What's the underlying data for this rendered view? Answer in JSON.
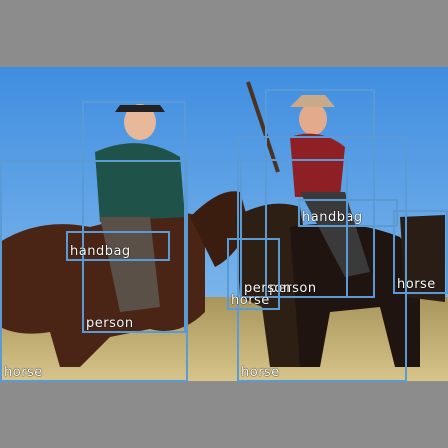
{
  "photo": {
    "sky_color": "#5a9fe0",
    "ground_color": "#b9a36a",
    "border_color": "#8c8c8c"
  },
  "box_color": "#5b9bd5",
  "detections": [
    {
      "id": "person-left",
      "label": "person"
    },
    {
      "id": "person-right",
      "label": "person"
    },
    {
      "id": "horse-left",
      "label": "horse"
    },
    {
      "id": "horse-center",
      "label": "horse"
    },
    {
      "id": "horse-right",
      "label": "horse"
    },
    {
      "id": "handbag-left",
      "label": "handbag"
    },
    {
      "id": "handbag-right",
      "label": "handbag"
    },
    {
      "id": "person-center",
      "label": "person"
    },
    {
      "id": "horse-small",
      "label": "horse"
    }
  ]
}
